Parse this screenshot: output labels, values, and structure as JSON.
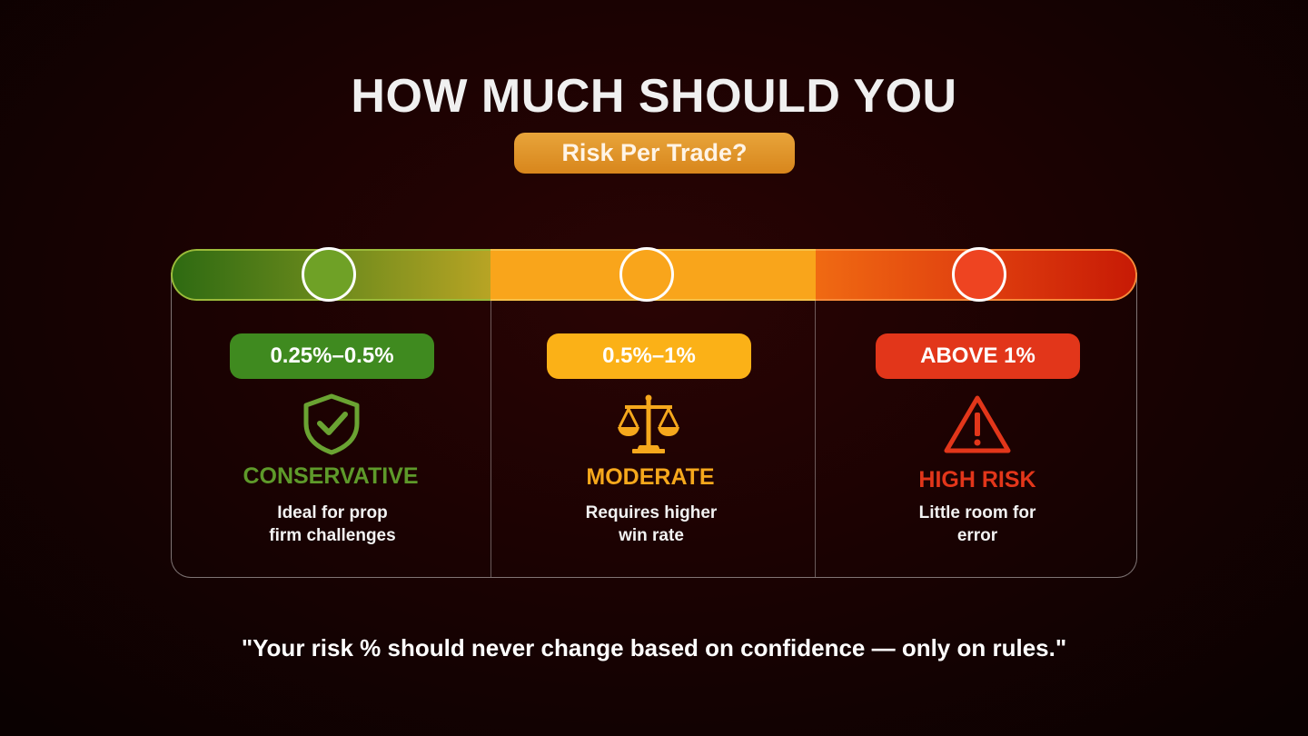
{
  "title": "HOW MUCH SHOULD YOU",
  "subtitle": "Risk Per Trade?",
  "levels": [
    {
      "range": "0.25%–0.5%",
      "label": "CONSERVATIVE",
      "desc1": "Ideal for prop",
      "desc2": "firm challenges",
      "icon": "shield-check-icon",
      "color": "#5e9a2a"
    },
    {
      "range": "0.5%–1%",
      "label": "MODERATE",
      "desc1": "Requires higher",
      "desc2": "win rate",
      "icon": "scales-icon",
      "color": "#f6a81c"
    },
    {
      "range": "ABOVE 1%",
      "label": "HIGH RISK",
      "desc1": "Little room for",
      "desc2": "error",
      "icon": "warning-icon",
      "color": "#e2361a"
    }
  ],
  "quote": "\"Your risk % should never change based on confidence — only on rules.\""
}
